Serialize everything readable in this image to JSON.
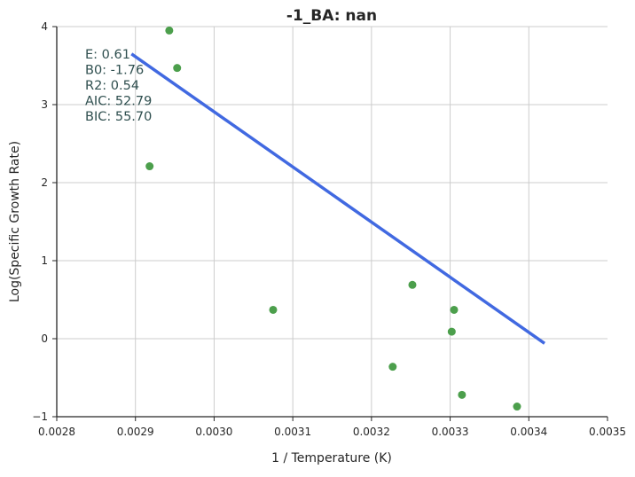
{
  "chart_data": {
    "type": "scatter",
    "title": "-1_BA: nan",
    "xlabel": "1 / Temperature (K)",
    "ylabel": "Log(Specific Growth Rate)",
    "xlim": [
      0.0028,
      0.0035
    ],
    "ylim": [
      -1,
      4
    ],
    "xticks": [
      "0.0028",
      "0.0029",
      "0.0030",
      "0.0031",
      "0.0032",
      "0.0033",
      "0.0034",
      "0.0035"
    ],
    "yticks": [
      "−1",
      "0",
      "1",
      "2",
      "3",
      "4"
    ],
    "xtick_values": [
      0.0028,
      0.0029,
      0.003,
      0.0031,
      0.0032,
      0.0033,
      0.0034,
      0.0035
    ],
    "ytick_values": [
      -1,
      0,
      1,
      2,
      3,
      4
    ],
    "grid": true,
    "points": {
      "color": "#4c9f4c",
      "x": [
        0.002943,
        0.002953,
        0.002918,
        0.003075,
        0.003252,
        0.003305,
        0.003302,
        0.003227,
        0.003315,
        0.003385
      ],
      "y": [
        3.95,
        3.47,
        2.21,
        0.37,
        0.69,
        0.37,
        0.09,
        -0.36,
        -0.72,
        -0.87
      ]
    },
    "fit_line": {
      "color": "#4169e1",
      "x": [
        0.002895,
        0.00342
      ],
      "y": [
        3.65,
        -0.06
      ]
    },
    "annotations": [
      "E:  0.61",
      "B0:  -1.76",
      "R2:  0.54",
      "AIC: 52.79",
      "BIC: 55.70"
    ]
  }
}
